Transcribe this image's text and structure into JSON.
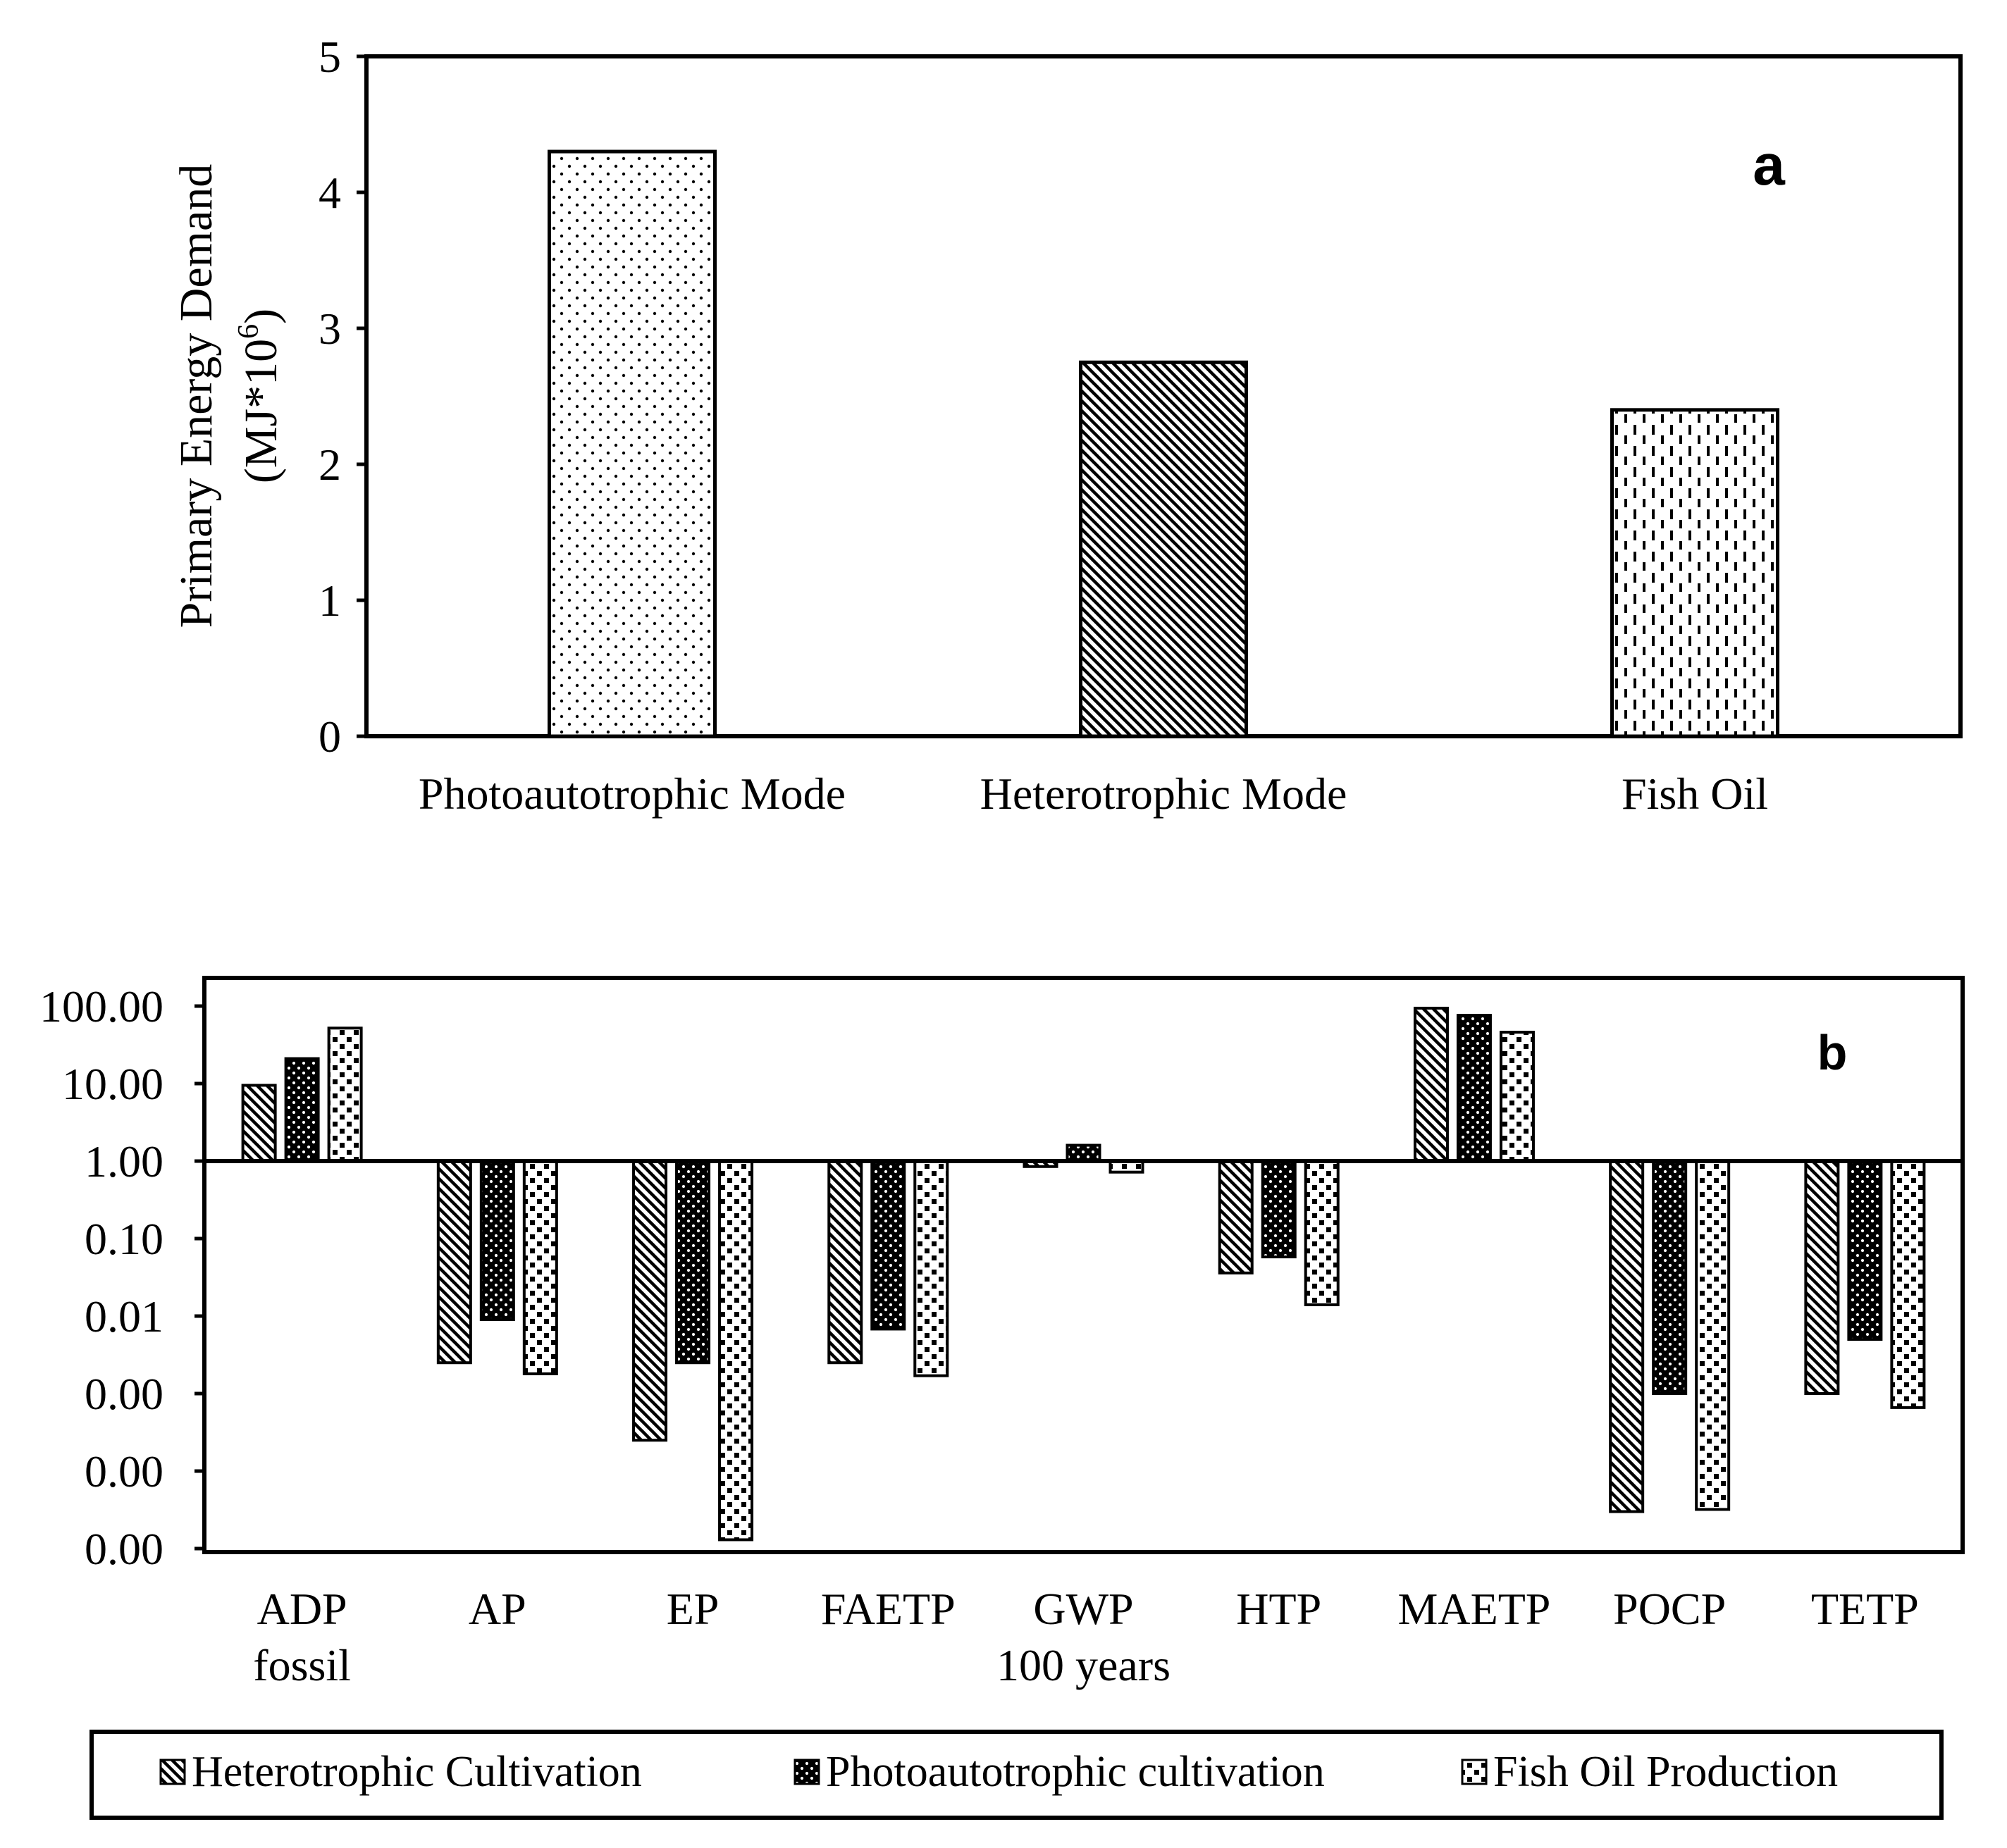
{
  "chart_data": [
    {
      "type": "bar",
      "panel_label": "a",
      "ylabel_line1": "Primary Energy Demand",
      "ylabel_line2_prefix": "(MJ*10",
      "ylabel_line2_sup": "6",
      "ylabel_line2_suffix": ")",
      "ylim": [
        0,
        5
      ],
      "yticks": [
        "0",
        "1",
        "2",
        "3",
        "4",
        "5"
      ],
      "categories": [
        "Photoautotrophic Mode",
        "Heterotrophic Mode",
        "Fish Oil"
      ],
      "values": [
        4.3,
        2.75,
        2.4
      ],
      "patterns": [
        "dots",
        "diagonal",
        "dashes"
      ]
    },
    {
      "type": "bar",
      "panel_label": "b",
      "scale": "log",
      "baseline": 1.0,
      "ylim": [
        1e-05,
        100
      ],
      "ytick_values": [
        1e-05,
        0.0001,
        0.001,
        0.01,
        0.1,
        1,
        10,
        100
      ],
      "ytick_labels": [
        "0.00",
        "0.00",
        "0.00",
        "0.01",
        "0.10",
        "1.00",
        "10.00",
        "100.00"
      ],
      "categories": [
        {
          "line1": "ADP",
          "line2": "fossil"
        },
        {
          "line1": "AP",
          "line2": ""
        },
        {
          "line1": "EP",
          "line2": ""
        },
        {
          "line1": "FAETP",
          "line2": ""
        },
        {
          "line1": "GWP",
          "line2": "100 years"
        },
        {
          "line1": "HTP",
          "line2": ""
        },
        {
          "line1": "MAETP",
          "line2": ""
        },
        {
          "line1": "POCP",
          "line2": ""
        },
        {
          "line1": "TETP",
          "line2": ""
        }
      ],
      "series": [
        {
          "name": "Heterotrophic Cultivation",
          "pattern": "diagonal",
          "values": [
            9.5,
            0.0025,
            0.00025,
            0.0025,
            0.85,
            0.036,
            94,
            3e-05,
            0.001
          ]
        },
        {
          "name": "Photoautotrophic cultivation",
          "pattern": "dots-dark",
          "values": [
            21,
            0.009,
            0.0025,
            0.0068,
            1.6,
            0.058,
            76,
            0.001,
            0.005
          ]
        },
        {
          "name": "Fish Oil Production",
          "pattern": "checker",
          "values": [
            52,
            0.0018,
            1.3e-05,
            0.0017,
            0.72,
            0.014,
            46,
            3.2e-05,
            0.00066
          ]
        }
      ]
    }
  ]
}
